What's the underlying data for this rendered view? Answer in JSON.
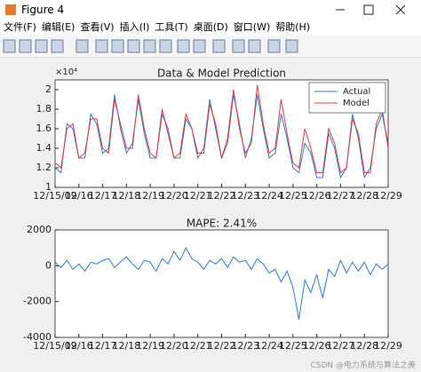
{
  "window": {
    "title": "Figure 4",
    "menu": [
      "文件(F)",
      "编辑(E)",
      "查看(V)",
      "插入(I)",
      "工具(T)",
      "桌面(D)",
      "窗口(W)",
      "帮助(H)"
    ],
    "watermark": "CSDN @电力系统与算法之美"
  },
  "chart_data": [
    {
      "type": "line",
      "title": "Data & Model Prediction",
      "y_exponent": "×10⁴",
      "x": [
        0,
        0.25,
        0.5,
        0.75,
        1,
        1.25,
        1.5,
        1.75,
        2,
        2.25,
        2.5,
        2.75,
        3,
        3.25,
        3.5,
        3.75,
        4,
        4.25,
        4.5,
        4.75,
        5,
        5.25,
        5.5,
        5.75,
        6,
        6.25,
        6.5,
        6.75,
        7,
        7.25,
        7.5,
        7.75,
        8,
        8.25,
        8.5,
        8.75,
        9,
        9.25,
        9.5,
        9.75,
        10,
        10.25,
        10.5,
        10.75,
        11,
        11.25,
        11.5,
        11.75,
        12,
        12.25,
        12.5,
        12.75,
        13,
        13.25,
        13.5,
        13.75,
        14
      ],
      "series": [
        {
          "name": "Actual",
          "color": "#2b7bd1",
          "values": [
            1.2,
            1.15,
            1.65,
            1.6,
            1.3,
            1.3,
            1.75,
            1.65,
            1.35,
            1.4,
            1.95,
            1.6,
            1.35,
            1.45,
            1.9,
            1.55,
            1.3,
            1.3,
            1.75,
            1.6,
            1.3,
            1.3,
            1.7,
            1.6,
            1.3,
            1.4,
            1.9,
            1.6,
            1.3,
            1.45,
            1.95,
            1.65,
            1.3,
            1.5,
            1.95,
            1.6,
            1.3,
            1.35,
            1.75,
            1.5,
            1.2,
            1.15,
            1.45,
            1.35,
            1.1,
            1.1,
            1.55,
            1.4,
            1.1,
            1.2,
            1.75,
            1.5,
            1.1,
            1.2,
            1.6,
            1.75,
            1.45
          ]
        },
        {
          "name": "Model",
          "color": "#e0383d",
          "values": [
            1.25,
            1.2,
            1.6,
            1.65,
            1.3,
            1.35,
            1.7,
            1.7,
            1.4,
            1.35,
            1.9,
            1.65,
            1.4,
            1.4,
            1.95,
            1.6,
            1.35,
            1.3,
            1.8,
            1.55,
            1.3,
            1.35,
            1.75,
            1.6,
            1.35,
            1.35,
            1.85,
            1.65,
            1.3,
            1.5,
            2.0,
            1.6,
            1.35,
            1.45,
            2.05,
            1.65,
            1.35,
            1.4,
            1.9,
            1.55,
            1.25,
            1.2,
            1.6,
            1.4,
            1.15,
            1.15,
            1.6,
            1.45,
            1.15,
            1.2,
            1.7,
            1.55,
            1.15,
            1.15,
            1.65,
            1.8,
            1.4
          ]
        }
      ],
      "xlim": [
        0,
        14
      ],
      "xticks": [
        {
          "value": 0,
          "label": "12/15/09"
        },
        {
          "value": 1,
          "label": "12/16"
        },
        {
          "value": 2,
          "label": "12/17"
        },
        {
          "value": 3,
          "label": "12/18"
        },
        {
          "value": 4,
          "label": "12/19"
        },
        {
          "value": 5,
          "label": "12/20"
        },
        {
          "value": 6,
          "label": "12/21"
        },
        {
          "value": 7,
          "label": "12/22"
        },
        {
          "value": 8,
          "label": "12/23"
        },
        {
          "value": 9,
          "label": "12/24"
        },
        {
          "value": 10,
          "label": "12/25"
        },
        {
          "value": 11,
          "label": "12/26"
        },
        {
          "value": 12,
          "label": "12/27"
        },
        {
          "value": 13,
          "label": "12/28"
        },
        {
          "value": 14,
          "label": "12/29"
        }
      ],
      "ylim": [
        1,
        2.1
      ],
      "yticks": [
        1,
        1.2,
        1.4,
        1.6,
        1.8,
        2
      ],
      "legend": "northeast",
      "grid": false
    },
    {
      "type": "line",
      "title": "MAPE: 2.41%",
      "x": [
        0,
        0.25,
        0.5,
        0.75,
        1,
        1.25,
        1.5,
        1.75,
        2,
        2.25,
        2.5,
        2.75,
        3,
        3.25,
        3.5,
        3.75,
        4,
        4.25,
        4.5,
        4.75,
        5,
        5.25,
        5.5,
        5.75,
        6,
        6.25,
        6.5,
        6.75,
        7,
        7.25,
        7.5,
        7.75,
        8,
        8.25,
        8.5,
        8.75,
        9,
        9.25,
        9.5,
        9.75,
        10,
        10.25,
        10.5,
        10.75,
        11,
        11.25,
        11.5,
        11.75,
        12,
        12.25,
        12.5,
        12.75,
        13,
        13.25,
        13.5,
        13.75,
        14
      ],
      "series": [
        {
          "color": "#2b7bd1",
          "values": [
            200,
            -100,
            300,
            -200,
            100,
            -300,
            200,
            100,
            300,
            400,
            -100,
            200,
            500,
            100,
            -200,
            300,
            200,
            -300,
            400,
            100,
            800,
            300,
            1000,
            400,
            200,
            -200,
            300,
            100,
            400,
            -100,
            500,
            200,
            300,
            -200,
            400,
            100,
            -400,
            -200,
            -900,
            -300,
            -1200,
            -3000,
            -800,
            -1500,
            -500,
            -1800,
            -200,
            -600,
            300,
            -400,
            200,
            -300,
            200,
            -500,
            100,
            -200,
            100
          ]
        }
      ],
      "xlim": [
        0,
        14
      ],
      "xticks": [
        {
          "value": 0,
          "label": "12/15/09"
        },
        {
          "value": 1,
          "label": "12/16"
        },
        {
          "value": 2,
          "label": "12/17"
        },
        {
          "value": 3,
          "label": "12/18"
        },
        {
          "value": 4,
          "label": "12/19"
        },
        {
          "value": 5,
          "label": "12/20"
        },
        {
          "value": 6,
          "label": "12/21"
        },
        {
          "value": 7,
          "label": "12/22"
        },
        {
          "value": 8,
          "label": "12/23"
        },
        {
          "value": 9,
          "label": "12/24"
        },
        {
          "value": 10,
          "label": "12/25"
        },
        {
          "value": 11,
          "label": "12/26"
        },
        {
          "value": 12,
          "label": "12/27"
        },
        {
          "value": 13,
          "label": "12/28"
        },
        {
          "value": 14,
          "label": "12/29"
        }
      ],
      "ylim": [
        -4000,
        2000
      ],
      "yticks": [
        -4000,
        -2000,
        0,
        2000
      ],
      "grid": false
    }
  ]
}
